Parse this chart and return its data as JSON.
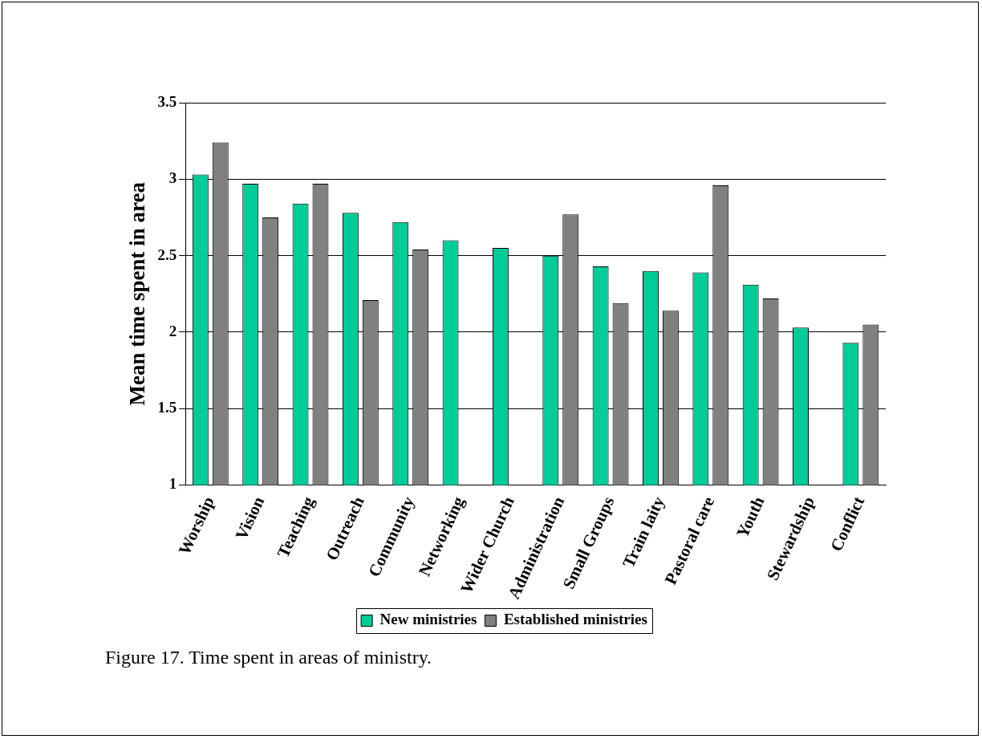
{
  "chart_data": {
    "type": "bar",
    "ylabel": "Mean time spent in area",
    "categories": [
      "Worship",
      "Vision",
      "Teaching",
      "Outreach",
      "Community",
      "Networking",
      "Wider Church",
      "Administration",
      "Small Groups",
      "Train laity",
      "Pastoral care",
      "Youth",
      "Stewardship",
      "Conflict"
    ],
    "series": [
      {
        "name": "New ministries",
        "color": "#00cc99",
        "values": [
          3.03,
          2.97,
          2.84,
          2.78,
          2.72,
          2.6,
          2.55,
          2.5,
          2.43,
          2.4,
          2.39,
          2.31,
          2.03,
          1.93
        ]
      },
      {
        "name": "Established ministries",
        "color": "#808080",
        "values": [
          3.24,
          2.75,
          2.97,
          2.21,
          2.54,
          null,
          null,
          2.77,
          2.19,
          2.14,
          2.96,
          2.22,
          null,
          2.05
        ]
      }
    ],
    "ylim": [
      1,
      3.5
    ],
    "yticks": [
      1,
      1.5,
      2,
      2.5,
      3,
      3.5
    ],
    "grid": "y",
    "legend": "bottom",
    "annotations": [
      "Figure 17. Time spent in areas of ministry."
    ]
  }
}
